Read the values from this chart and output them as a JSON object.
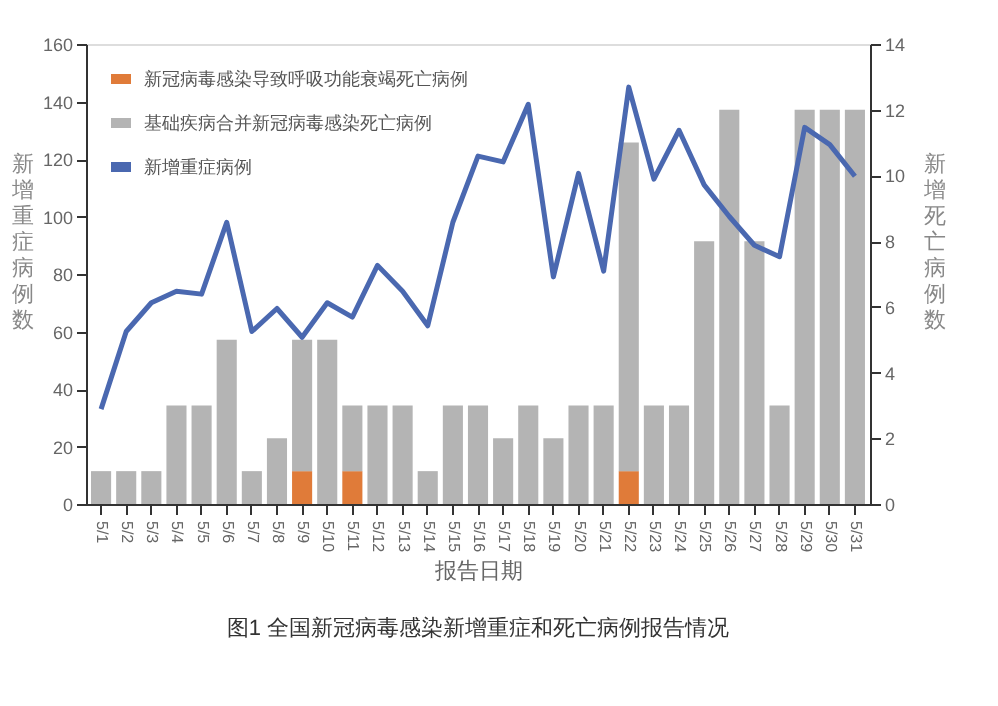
{
  "chart_data": {
    "type": "bar",
    "title": "图1 全国新冠病毒感染新增重症和死亡病例报告情况",
    "xlabel": "报告日期",
    "ylabel": "新增重症病例数",
    "y2label": "新增死亡病例数",
    "categories": [
      "5/1",
      "5/2",
      "5/3",
      "5/4",
      "5/5",
      "5/6",
      "5/7",
      "5/8",
      "5/9",
      "5/10",
      "5/11",
      "5/12",
      "5/13",
      "5/14",
      "5/15",
      "5/16",
      "5/17",
      "5/18",
      "5/19",
      "5/20",
      "5/21",
      "5/22",
      "5/23",
      "5/24",
      "5/25",
      "5/26",
      "5/27",
      "5/28",
      "5/29",
      "5/30",
      "5/31"
    ],
    "stacked": true,
    "series": [
      {
        "name": "新冠病毒感染导致呼吸功能衰竭死亡病例",
        "color": "#e07b39",
        "axis": "y2",
        "values": [
          0,
          0,
          0,
          0,
          0,
          0,
          0,
          0,
          1,
          0,
          1,
          0,
          0,
          0,
          0,
          0,
          0,
          0,
          0,
          0,
          0,
          1,
          0,
          0,
          0,
          0,
          0,
          0,
          0,
          0,
          0
        ]
      },
      {
        "name": "基础疾病合并新冠病毒感染死亡病例",
        "color": "#b4b4b4",
        "axis": "y2",
        "values": [
          1,
          1,
          1,
          3,
          3,
          5,
          1,
          2,
          4,
          5,
          2,
          3,
          3,
          1,
          3,
          3,
          2,
          3,
          2,
          3,
          3,
          10,
          3,
          3,
          8,
          12,
          8,
          3,
          12,
          12,
          12
        ]
      },
      {
        "name": "新增重症病例",
        "color": "#4a68b0",
        "type": "line",
        "values": [
          33,
          60,
          70,
          74,
          73,
          98,
          60,
          68,
          58,
          70,
          65,
          83,
          74,
          62,
          98,
          121,
          119,
          139,
          79,
          115,
          81,
          145,
          113,
          130,
          111,
          100,
          90,
          86,
          131,
          125,
          114
        ]
      }
    ],
    "ylim": [
      0,
      160
    ],
    "yticks": [
      0,
      20,
      40,
      60,
      80,
      100,
      120,
      140,
      160
    ],
    "y2lim": [
      0,
      14
    ],
    "y2ticks": [
      0,
      2,
      4,
      6,
      8,
      10,
      12,
      14
    ],
    "legend": "top left",
    "grid": false
  }
}
